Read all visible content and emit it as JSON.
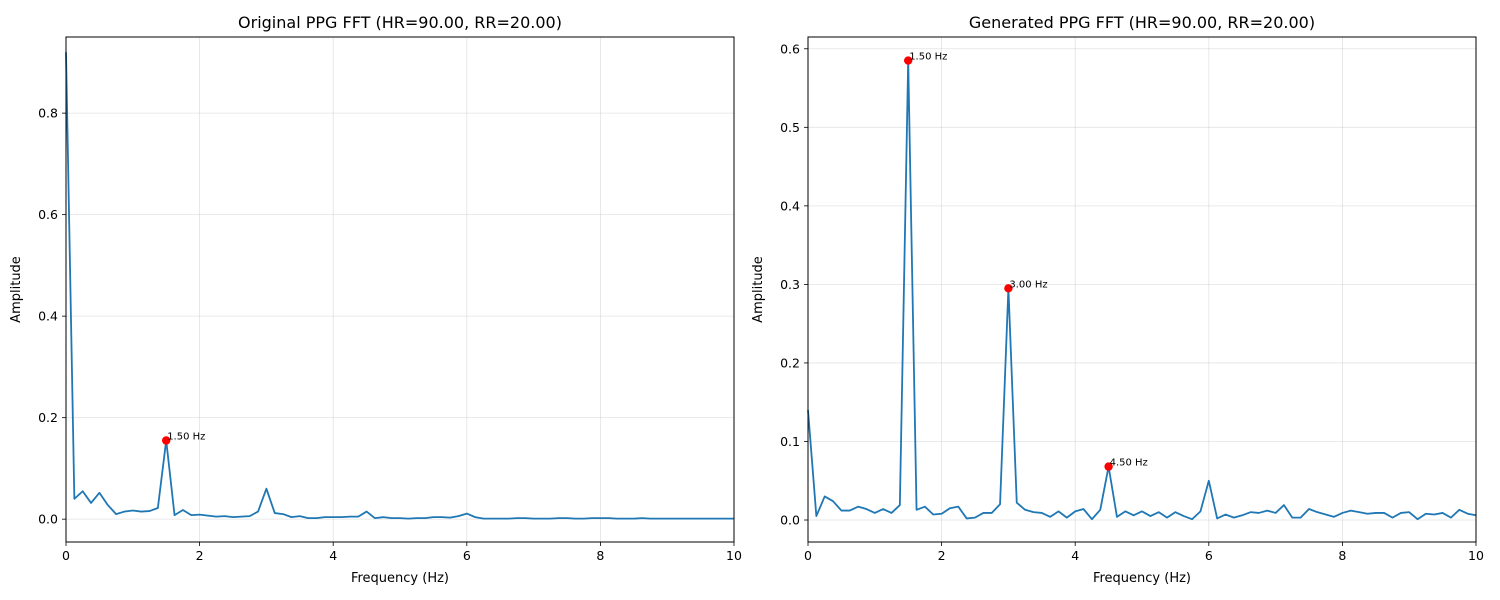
{
  "chart_data": [
    {
      "type": "line",
      "title": "Original PPG FFT (HR=90.00, RR=20.00)",
      "xlabel": "Frequency (Hz)",
      "ylabel": "Amplitude",
      "xlim": [
        0,
        10
      ],
      "ylim": [
        -0.045,
        0.95
      ],
      "xticks": [
        0,
        2,
        4,
        6,
        8,
        10
      ],
      "yticks": [
        0.0,
        0.2,
        0.4,
        0.6,
        0.8
      ],
      "ytick_labels": [
        "0.0",
        "0.2",
        "0.4",
        "0.6",
        "0.8"
      ],
      "grid": true,
      "x_step": 0.125,
      "values": [
        0.92,
        0.04,
        0.055,
        0.032,
        0.052,
        0.028,
        0.01,
        0.015,
        0.017,
        0.015,
        0.016,
        0.022,
        0.155,
        0.008,
        0.018,
        0.008,
        0.009,
        0.007,
        0.005,
        0.006,
        0.004,
        0.005,
        0.006,
        0.015,
        0.06,
        0.012,
        0.01,
        0.004,
        0.006,
        0.002,
        0.002,
        0.004,
        0.004,
        0.004,
        0.005,
        0.005,
        0.015,
        0.002,
        0.004,
        0.002,
        0.002,
        0.001,
        0.002,
        0.002,
        0.004,
        0.004,
        0.003,
        0.006,
        0.011,
        0.004,
        0.001,
        0.001,
        0.001,
        0.001,
        0.002,
        0.002,
        0.001,
        0.001,
        0.001,
        0.002,
        0.002,
        0.001,
        0.001,
        0.002,
        0.002,
        0.002,
        0.001,
        0.001,
        0.001,
        0.002,
        0.001,
        0.001,
        0.001,
        0.001,
        0.001,
        0.001,
        0.001,
        0.001,
        0.001,
        0.001,
        0.001
      ],
      "peaks": [
        {
          "x": 1.5,
          "y": 0.155,
          "label": "1.50 Hz"
        }
      ]
    },
    {
      "type": "line",
      "title": "Generated PPG FFT (HR=90.00, RR=20.00)",
      "xlabel": "Frequency (Hz)",
      "ylabel": "Amplitude",
      "xlim": [
        0,
        10
      ],
      "ylim": [
        -0.028,
        0.615
      ],
      "xticks": [
        0,
        2,
        4,
        6,
        8,
        10
      ],
      "yticks": [
        0.0,
        0.1,
        0.2,
        0.3,
        0.4,
        0.5,
        0.6
      ],
      "ytick_labels": [
        "0.0",
        "0.1",
        "0.2",
        "0.3",
        "0.4",
        "0.5",
        "0.6"
      ],
      "grid": true,
      "x_step": 0.125,
      "values": [
        0.14,
        0.005,
        0.03,
        0.024,
        0.012,
        0.012,
        0.017,
        0.014,
        0.009,
        0.014,
        0.009,
        0.019,
        0.585,
        0.013,
        0.017,
        0.007,
        0.008,
        0.015,
        0.017,
        0.002,
        0.003,
        0.009,
        0.009,
        0.02,
        0.295,
        0.022,
        0.013,
        0.01,
        0.009,
        0.004,
        0.011,
        0.003,
        0.011,
        0.014,
        0.001,
        0.013,
        0.068,
        0.004,
        0.011,
        0.006,
        0.011,
        0.005,
        0.01,
        0.003,
        0.01,
        0.005,
        0.001,
        0.011,
        0.05,
        0.002,
        0.007,
        0.003,
        0.006,
        0.01,
        0.009,
        0.012,
        0.009,
        0.019,
        0.003,
        0.003,
        0.014,
        0.01,
        0.007,
        0.004,
        0.009,
        0.012,
        0.01,
        0.008,
        0.009,
        0.009,
        0.003,
        0.009,
        0.01,
        0.001,
        0.008,
        0.007,
        0.009,
        0.003,
        0.013,
        0.008,
        0.006
      ],
      "peaks": [
        {
          "x": 1.5,
          "y": 0.585,
          "label": "1.50 Hz"
        },
        {
          "x": 3.0,
          "y": 0.295,
          "label": "3.00 Hz"
        },
        {
          "x": 4.5,
          "y": 0.068,
          "label": "4.50 Hz"
        }
      ]
    }
  ]
}
